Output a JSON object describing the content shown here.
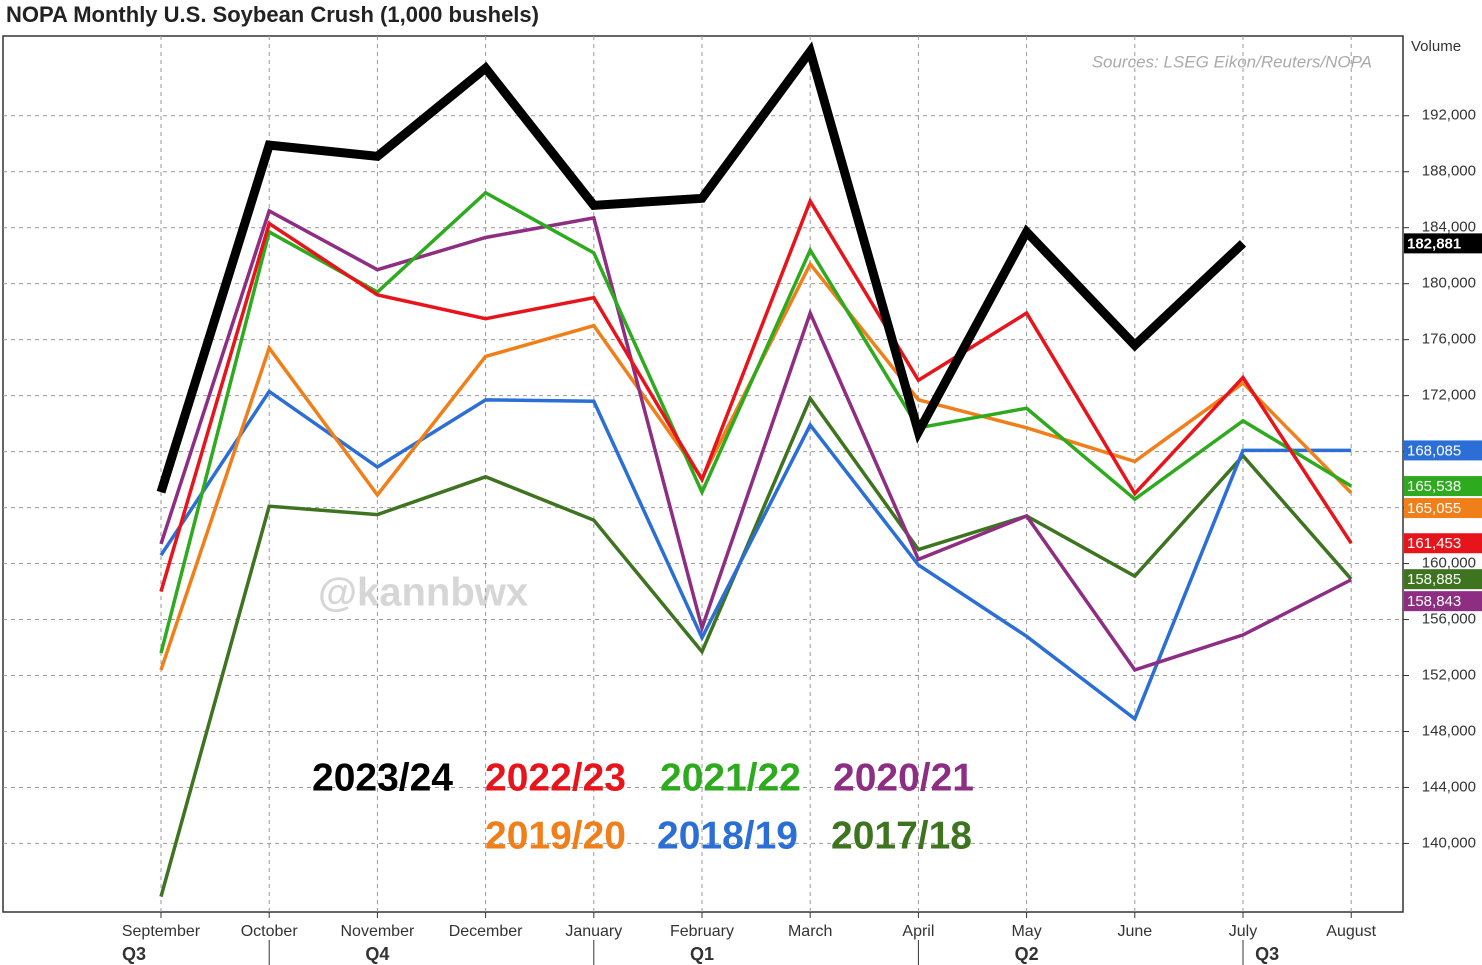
{
  "chart_data": {
    "type": "line",
    "title": "NOPA Monthly U.S. Soybean Crush (1,000 bushels)",
    "source": "Sources: LSEG Eikon/Reuters/NOPA",
    "y_axis_label": "Volume",
    "watermark": "@kannbwx",
    "categories": [
      "September",
      "October",
      "November",
      "December",
      "January",
      "February",
      "March",
      "April",
      "May",
      "June",
      "July",
      "August"
    ],
    "quarters": [
      "Q3",
      "Q4",
      "Q1",
      "Q2",
      "Q3"
    ],
    "ylim": [
      135100,
      197700
    ],
    "yticks": [
      {
        "value": 140000,
        "label": "140,000"
      },
      {
        "value": 144000,
        "label": "144,000"
      },
      {
        "value": 148000,
        "label": "148,000"
      },
      {
        "value": 152000,
        "label": "152,000"
      },
      {
        "value": 156000,
        "label": "156,000"
      },
      {
        "value": 160000,
        "label": "160,000"
      },
      {
        "value": 164000,
        "label": "164,000"
      },
      {
        "value": 168000,
        "label": "168,000"
      },
      {
        "value": 172000,
        "label": "172,000"
      },
      {
        "value": 176000,
        "label": "176,000"
      },
      {
        "value": 180000,
        "label": "180,000"
      },
      {
        "value": 184000,
        "label": "184,000"
      },
      {
        "value": 188000,
        "label": "188,000"
      },
      {
        "value": 192000,
        "label": "192,000"
      }
    ],
    "grid": true,
    "series": [
      {
        "name": "2023/24",
        "color": "#000000",
        "values": [
          165100,
          189900,
          189100,
          195400,
          185600,
          186100,
          196600,
          169400,
          183700,
          175600,
          182881,
          null
        ],
        "value_labels": [
          null,
          null,
          null,
          null,
          null,
          null,
          null,
          null,
          null,
          null,
          "182,881",
          null
        ]
      },
      {
        "name": "2022/23",
        "color": "#e8141b",
        "values": [
          158000,
          184300,
          179200,
          177500,
          179000,
          166000,
          185900,
          173100,
          177900,
          165000,
          173300,
          161453
        ],
        "value_labels": [
          null,
          null,
          null,
          null,
          null,
          null,
          null,
          null,
          null,
          null,
          null,
          "161,453"
        ]
      },
      {
        "name": "2021/22",
        "color": "#2eaa1e",
        "values": [
          153600,
          183700,
          179400,
          186500,
          182200,
          165100,
          182400,
          169700,
          171100,
          164600,
          170200,
          165538
        ],
        "value_labels": [
          null,
          null,
          null,
          null,
          null,
          null,
          null,
          null,
          null,
          null,
          null,
          "165,538"
        ]
      },
      {
        "name": "2020/21",
        "color": "#8e2e82",
        "values": [
          161400,
          185200,
          181000,
          183300,
          184700,
          155400,
          177900,
          160300,
          163400,
          152400,
          154900,
          158843
        ],
        "value_labels": [
          null,
          null,
          null,
          null,
          null,
          null,
          null,
          null,
          null,
          null,
          null,
          "158,843"
        ]
      },
      {
        "name": "2019/20",
        "color": "#f07f1a",
        "values": [
          152400,
          175400,
          164900,
          174800,
          177000,
          166100,
          181400,
          171700,
          169700,
          167300,
          172900,
          165055
        ],
        "value_labels": [
          null,
          null,
          null,
          null,
          null,
          null,
          null,
          null,
          null,
          null,
          null,
          "165,055"
        ]
      },
      {
        "name": "2018/19",
        "color": "#2b6fd6",
        "values": [
          160600,
          172300,
          166900,
          171700,
          171600,
          154700,
          169900,
          159900,
          154800,
          148900,
          168085,
          168085
        ],
        "value_labels": [
          null,
          null,
          null,
          null,
          null,
          null,
          null,
          null,
          null,
          null,
          null,
          "168,085"
        ]
      },
      {
        "name": "2017/18",
        "color": "#3e7320",
        "values": [
          136200,
          164100,
          163500,
          166200,
          163100,
          153700,
          171800,
          161000,
          163400,
          159100,
          167700,
          158885
        ],
        "value_labels": [
          null,
          null,
          null,
          null,
          null,
          null,
          null,
          null,
          null,
          null,
          null,
          "158,885"
        ]
      }
    ]
  }
}
